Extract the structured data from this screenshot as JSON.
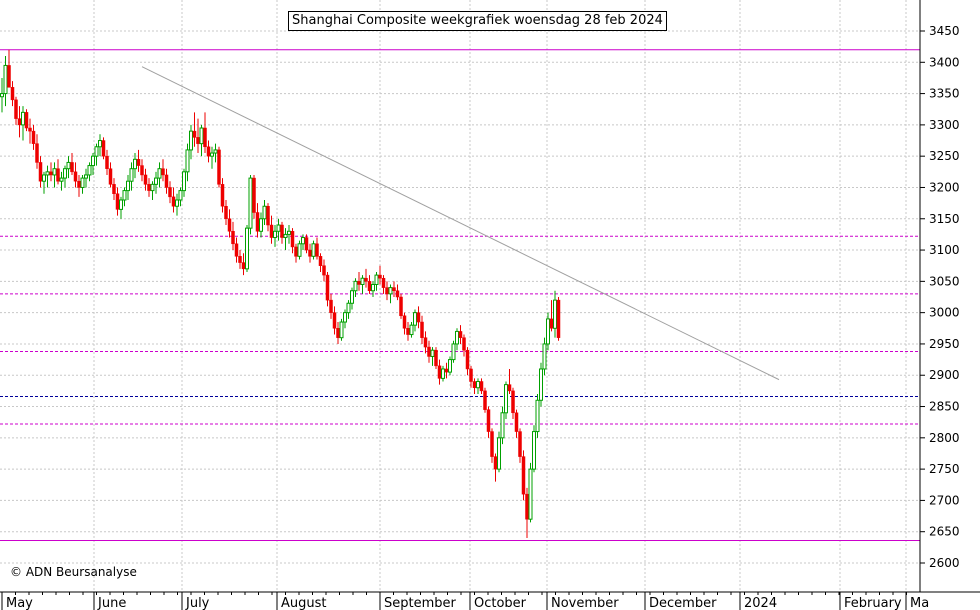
{
  "title": "Shanghai Composite weekgrafiek woensdag 28 feb 2024",
  "copyright": "© ADN Beursanalyse",
  "colors": {
    "up": "#00a000",
    "down": "#ee0000",
    "magenta": "#cc00cc",
    "blue_line": "#000099",
    "trendline": "#a0a0a0",
    "grid": "#c8c8c8"
  },
  "chart_data": {
    "type": "candlestick",
    "ylim": [
      2570,
      3470
    ],
    "y_ticks": [
      2600,
      2650,
      2700,
      2750,
      2800,
      2850,
      2900,
      2950,
      3000,
      3050,
      3100,
      3150,
      3200,
      3250,
      3300,
      3350,
      3400,
      3450
    ],
    "x_labels": [
      "May",
      "June",
      "July",
      "August",
      "September",
      "October",
      "November",
      "December",
      "2024",
      "February",
      "Ma"
    ],
    "horizontal_lines": [
      {
        "value": 3420,
        "style": "solid",
        "color": "magenta"
      },
      {
        "value": 3122,
        "style": "dashed",
        "color": "magenta"
      },
      {
        "value": 3030,
        "style": "dashed",
        "color": "magenta"
      },
      {
        "value": 2938,
        "style": "dashed",
        "color": "magenta"
      },
      {
        "value": 2866,
        "style": "dashed",
        "color": "blue_line"
      },
      {
        "value": 2822,
        "style": "dashed",
        "color": "magenta"
      },
      {
        "value": 2636,
        "style": "solid",
        "color": "magenta"
      }
    ],
    "trendline": {
      "from": {
        "bar": 40,
        "value": 3393
      },
      "to": {
        "bar": 222,
        "value": 2893
      }
    },
    "ohlc": [
      [
        3345,
        3375,
        3320,
        3350
      ],
      [
        3350,
        3410,
        3330,
        3395
      ],
      [
        3395,
        3420,
        3360,
        3360
      ],
      [
        3360,
        3370,
        3330,
        3340
      ],
      [
        3340,
        3345,
        3300,
        3310
      ],
      [
        3310,
        3330,
        3280,
        3300
      ],
      [
        3300,
        3330,
        3275,
        3320
      ],
      [
        3320,
        3325,
        3290,
        3295
      ],
      [
        3295,
        3310,
        3270,
        3290
      ],
      [
        3290,
        3300,
        3260,
        3270
      ],
      [
        3270,
        3285,
        3230,
        3240
      ],
      [
        3240,
        3250,
        3200,
        3210
      ],
      [
        3210,
        3225,
        3190,
        3220
      ],
      [
        3220,
        3235,
        3200,
        3225
      ],
      [
        3225,
        3240,
        3210,
        3220
      ],
      [
        3220,
        3240,
        3200,
        3230
      ],
      [
        3230,
        3245,
        3205,
        3210
      ],
      [
        3210,
        3225,
        3195,
        3215
      ],
      [
        3215,
        3235,
        3200,
        3230
      ],
      [
        3230,
        3250,
        3215,
        3240
      ],
      [
        3240,
        3255,
        3220,
        3225
      ],
      [
        3225,
        3240,
        3200,
        3210
      ],
      [
        3210,
        3220,
        3185,
        3200
      ],
      [
        3200,
        3220,
        3190,
        3215
      ],
      [
        3215,
        3230,
        3200,
        3220
      ],
      [
        3220,
        3240,
        3210,
        3235
      ],
      [
        3235,
        3255,
        3220,
        3250
      ],
      [
        3250,
        3270,
        3235,
        3265
      ],
      [
        3265,
        3285,
        3250,
        3275
      ],
      [
        3275,
        3280,
        3245,
        3250
      ],
      [
        3250,
        3260,
        3220,
        3230
      ],
      [
        3230,
        3240,
        3200,
        3205
      ],
      [
        3205,
        3215,
        3180,
        3190
      ],
      [
        3190,
        3200,
        3155,
        3165
      ],
      [
        3165,
        3185,
        3150,
        3180
      ],
      [
        3180,
        3200,
        3170,
        3195
      ],
      [
        3195,
        3220,
        3180,
        3210
      ],
      [
        3210,
        3240,
        3195,
        3230
      ],
      [
        3230,
        3255,
        3215,
        3245
      ],
      [
        3245,
        3260,
        3225,
        3235
      ],
      [
        3235,
        3245,
        3210,
        3220
      ],
      [
        3220,
        3230,
        3195,
        3205
      ],
      [
        3205,
        3215,
        3185,
        3195
      ],
      [
        3195,
        3210,
        3180,
        3205
      ],
      [
        3205,
        3225,
        3190,
        3215
      ],
      [
        3215,
        3240,
        3200,
        3230
      ],
      [
        3230,
        3245,
        3210,
        3220
      ],
      [
        3220,
        3230,
        3190,
        3200
      ],
      [
        3200,
        3210,
        3175,
        3185
      ],
      [
        3185,
        3200,
        3160,
        3170
      ],
      [
        3170,
        3190,
        3155,
        3180
      ],
      [
        3180,
        3200,
        3170,
        3195
      ],
      [
        3195,
        3230,
        3185,
        3225
      ],
      [
        3225,
        3270,
        3210,
        3260
      ],
      [
        3260,
        3300,
        3245,
        3290
      ],
      [
        3290,
        3320,
        3265,
        3280
      ],
      [
        3280,
        3310,
        3255,
        3270
      ],
      [
        3270,
        3300,
        3250,
        3295
      ],
      [
        3295,
        3320,
        3255,
        3265
      ],
      [
        3265,
        3275,
        3240,
        3250
      ],
      [
        3250,
        3265,
        3230,
        3255
      ],
      [
        3255,
        3270,
        3240,
        3260
      ],
      [
        3260,
        3265,
        3200,
        3205
      ],
      [
        3205,
        3215,
        3160,
        3170
      ],
      [
        3170,
        3180,
        3140,
        3150
      ],
      [
        3150,
        3165,
        3120,
        3130
      ],
      [
        3130,
        3145,
        3100,
        3110
      ],
      [
        3110,
        3120,
        3080,
        3090
      ],
      [
        3090,
        3100,
        3070,
        3080
      ],
      [
        3080,
        3095,
        3060,
        3070
      ],
      [
        3070,
        3140,
        3065,
        3135
      ],
      [
        3135,
        3220,
        3125,
        3215
      ],
      [
        3215,
        3220,
        3150,
        3160
      ],
      [
        3160,
        3175,
        3120,
        3130
      ],
      [
        3130,
        3160,
        3120,
        3150
      ],
      [
        3150,
        3180,
        3140,
        3170
      ],
      [
        3170,
        3175,
        3130,
        3140
      ],
      [
        3140,
        3155,
        3110,
        3120
      ],
      [
        3120,
        3140,
        3105,
        3130
      ],
      [
        3130,
        3150,
        3115,
        3140
      ],
      [
        3140,
        3145,
        3110,
        3120
      ],
      [
        3120,
        3135,
        3100,
        3125
      ],
      [
        3125,
        3140,
        3110,
        3130
      ],
      [
        3130,
        3135,
        3095,
        3105
      ],
      [
        3105,
        3110,
        3080,
        3090
      ],
      [
        3090,
        3115,
        3085,
        3110
      ],
      [
        3110,
        3125,
        3100,
        3120
      ],
      [
        3120,
        3125,
        3095,
        3100
      ],
      [
        3100,
        3110,
        3080,
        3090
      ],
      [
        3090,
        3115,
        3085,
        3110
      ],
      [
        3110,
        3120,
        3085,
        3090
      ],
      [
        3090,
        3095,
        3065,
        3075
      ],
      [
        3075,
        3085,
        3050,
        3060
      ],
      [
        3060,
        3065,
        3010,
        3020
      ],
      [
        3020,
        3030,
        2990,
        3000
      ],
      [
        3000,
        3010,
        2965,
        2975
      ],
      [
        2975,
        2985,
        2950,
        2960
      ],
      [
        2960,
        2990,
        2955,
        2985
      ],
      [
        2985,
        3005,
        2975,
        3000
      ],
      [
        3000,
        3020,
        2990,
        3015
      ],
      [
        3015,
        3040,
        3005,
        3035
      ],
      [
        3035,
        3055,
        3025,
        3050
      ],
      [
        3050,
        3065,
        3035,
        3045
      ],
      [
        3045,
        3060,
        3030,
        3055
      ],
      [
        3055,
        3070,
        3040,
        3050
      ],
      [
        3050,
        3060,
        3030,
        3035
      ],
      [
        3035,
        3050,
        3025,
        3045
      ],
      [
        3045,
        3065,
        3035,
        3060
      ],
      [
        3060,
        3075,
        3045,
        3055
      ],
      [
        3055,
        3060,
        3030,
        3040
      ],
      [
        3040,
        3050,
        3020,
        3030
      ],
      [
        3030,
        3045,
        3015,
        3040
      ],
      [
        3040,
        3050,
        3025,
        3035
      ],
      [
        3035,
        3045,
        3020,
        3025
      ],
      [
        3025,
        3030,
        2990,
        2995
      ],
      [
        2995,
        3000,
        2965,
        2975
      ],
      [
        2975,
        2985,
        2955,
        2965
      ],
      [
        2965,
        2985,
        2960,
        2980
      ],
      [
        2980,
        3005,
        2970,
        3000
      ],
      [
        3000,
        3010,
        2975,
        2985
      ],
      [
        2985,
        2995,
        2950,
        2960
      ],
      [
        2960,
        2970,
        2935,
        2945
      ],
      [
        2945,
        2955,
        2920,
        2930
      ],
      [
        2930,
        2945,
        2915,
        2940
      ],
      [
        2940,
        2945,
        2910,
        2915
      ],
      [
        2915,
        2925,
        2885,
        2895
      ],
      [
        2895,
        2915,
        2890,
        2910
      ],
      [
        2910,
        2920,
        2895,
        2905
      ],
      [
        2905,
        2930,
        2900,
        2925
      ],
      [
        2925,
        2955,
        2920,
        2950
      ],
      [
        2950,
        2975,
        2940,
        2970
      ],
      [
        2970,
        2980,
        2950,
        2960
      ],
      [
        2960,
        2965,
        2930,
        2940
      ],
      [
        2940,
        2945,
        2900,
        2910
      ],
      [
        2910,
        2915,
        2880,
        2890
      ],
      [
        2890,
        2895,
        2870,
        2880
      ],
      [
        2880,
        2895,
        2870,
        2890
      ],
      [
        2890,
        2895,
        2870,
        2875
      ],
      [
        2875,
        2880,
        2840,
        2845
      ],
      [
        2845,
        2850,
        2800,
        2810
      ],
      [
        2810,
        2815,
        2760,
        2770
      ],
      [
        2770,
        2775,
        2730,
        2750
      ],
      [
        2750,
        2810,
        2745,
        2800
      ],
      [
        2800,
        2850,
        2790,
        2840
      ],
      [
        2840,
        2890,
        2830,
        2885
      ],
      [
        2885,
        2910,
        2870,
        2875
      ],
      [
        2875,
        2880,
        2830,
        2840
      ],
      [
        2840,
        2845,
        2800,
        2810
      ],
      [
        2810,
        2815,
        2760,
        2770
      ],
      [
        2770,
        2780,
        2700,
        2710
      ],
      [
        2710,
        2720,
        2640,
        2670
      ],
      [
        2670,
        2760,
        2665,
        2750
      ],
      [
        2750,
        2820,
        2745,
        2810
      ],
      [
        2810,
        2870,
        2800,
        2860
      ],
      [
        2860,
        2920,
        2850,
        2910
      ],
      [
        2910,
        2960,
        2900,
        2950
      ],
      [
        2950,
        3000,
        2940,
        2990
      ],
      [
        2990,
        3020,
        2970,
        2975
      ],
      [
        2975,
        3035,
        2960,
        3020
      ],
      [
        3020,
        3025,
        2955,
        2960
      ]
    ]
  }
}
